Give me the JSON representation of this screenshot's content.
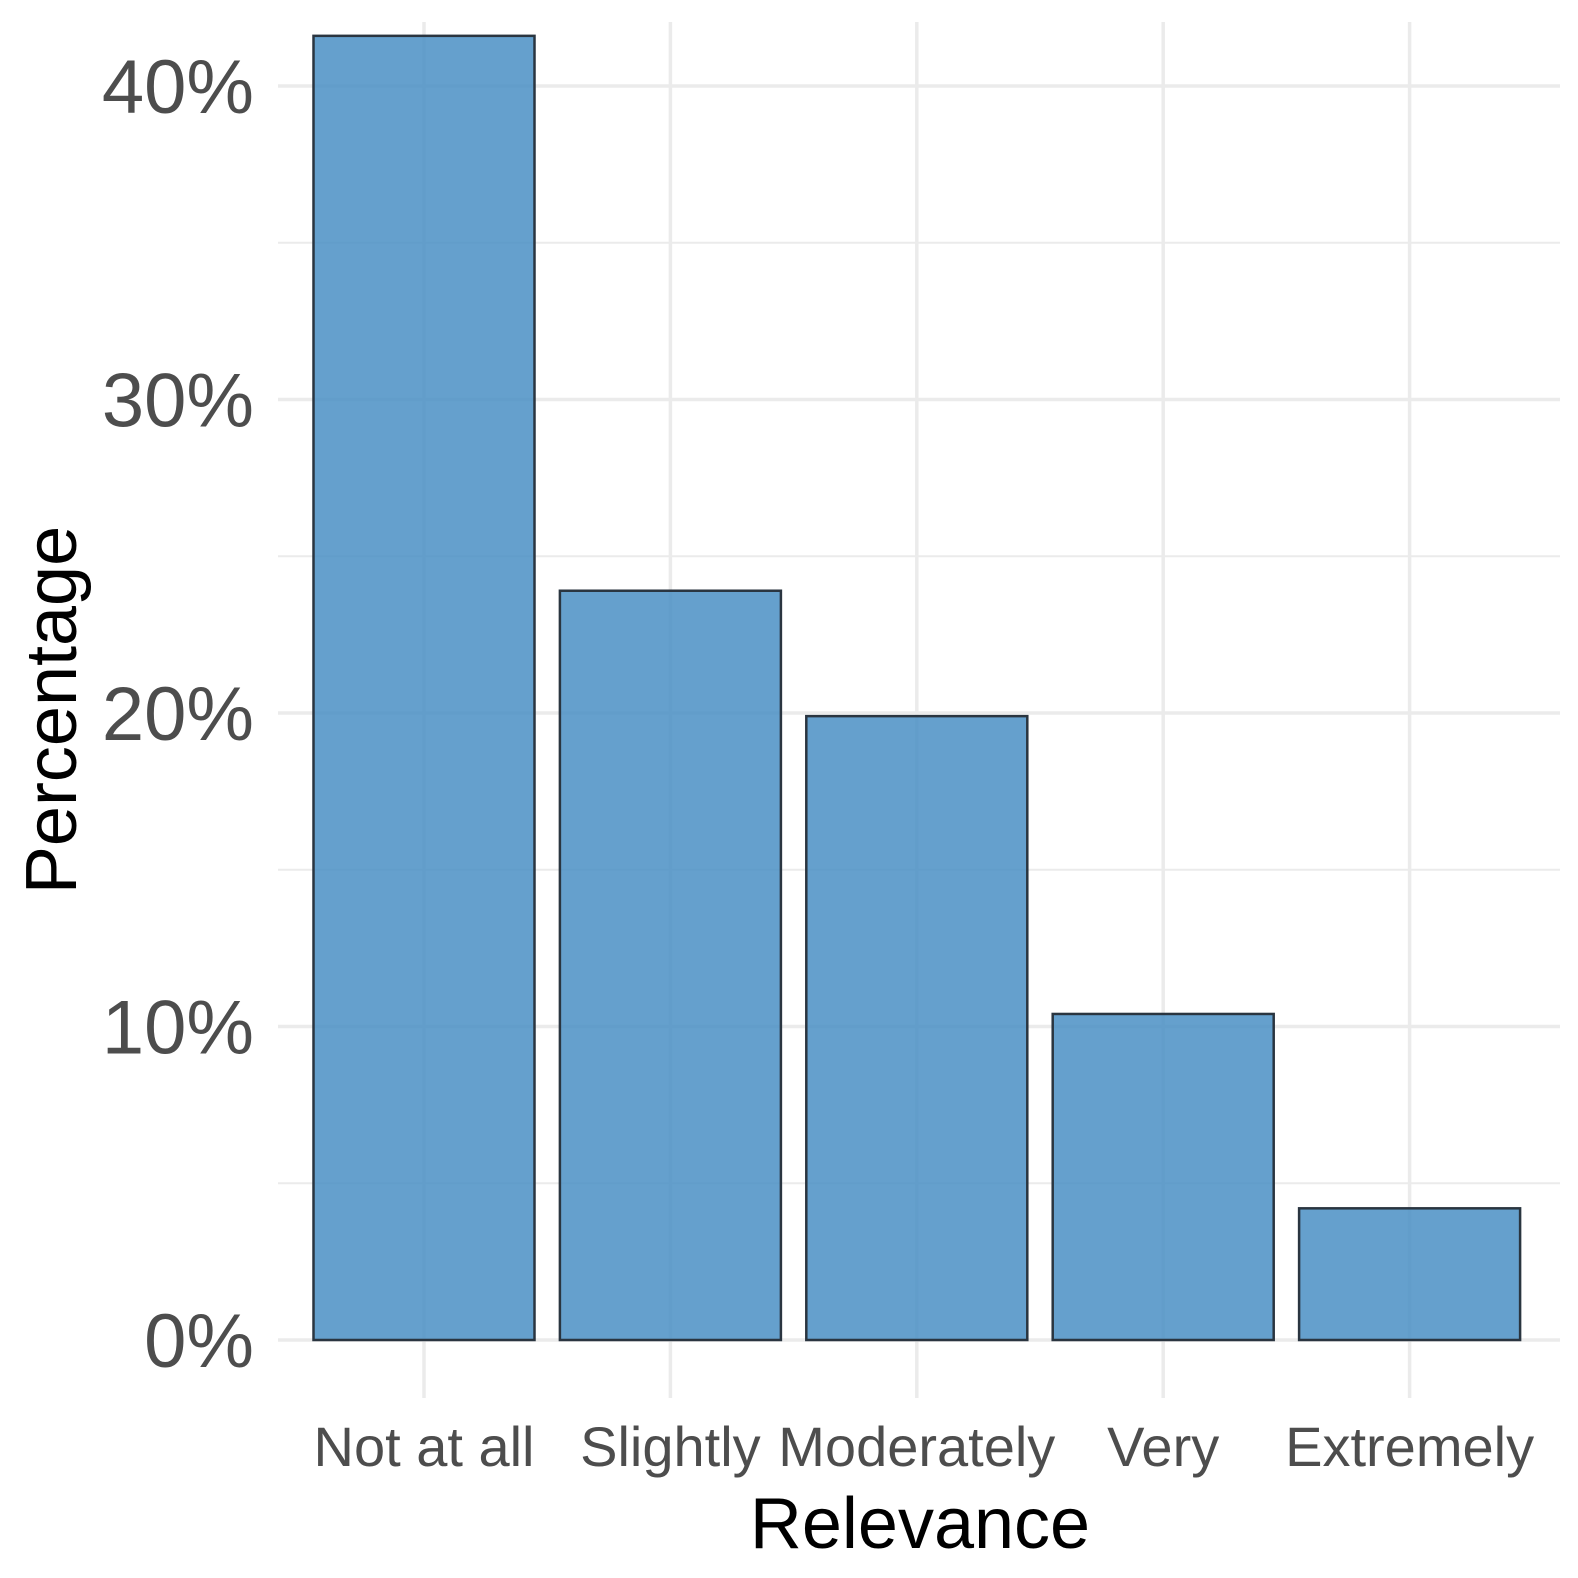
{
  "chart_data": {
    "type": "bar",
    "categories": [
      "Not at all",
      "Slightly",
      "Moderately",
      "Very",
      "Extremely"
    ],
    "values": [
      41.6,
      23.9,
      19.9,
      10.4,
      4.2
    ],
    "title": "",
    "xlabel": "Relevance",
    "ylabel": "Percentage",
    "ylim": [
      0,
      42
    ],
    "yticks": [
      0,
      10,
      20,
      30,
      40
    ],
    "ytick_labels": [
      "0%",
      "10%",
      "20%",
      "30%",
      "40%"
    ],
    "grid": true,
    "legend": "none",
    "colors": {
      "bar_fill": "#4a8fc4",
      "bar_stroke": "#2a3540",
      "grid": "#ebebeb",
      "tick_text": "#4d4d4d",
      "title_text": "#000000"
    }
  }
}
